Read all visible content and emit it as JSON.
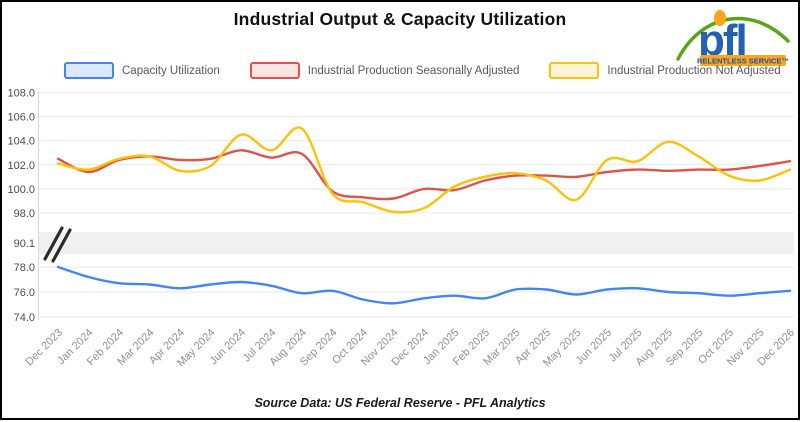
{
  "logo": {
    "text": "pfl",
    "tagline": "RELENTLESS SERVICE™"
  },
  "source_note": "Source Data: US Federal Reserve - PFL Analytics",
  "colors": {
    "background": "#ffffff",
    "frame_border": "#000000",
    "grid": "#e8e8e8",
    "axis_line": "#d8d8d8",
    "break_band": "#f0f0f0",
    "break_mark": "#2b2b2b",
    "y_label": "#4d4d4d",
    "x_label": "#909090",
    "logo_blue": "#2660B0",
    "logo_green": "#58A618",
    "logo_orange": "#F9A61A"
  },
  "chart_data": {
    "type": "line",
    "title": "Industrial Output & Capacity Utilization",
    "grid": true,
    "legend_position": "top",
    "categories": [
      "Dec 2023",
      "Jan 2024",
      "Feb 2024",
      "Mar 2024",
      "Apr 2024",
      "May 2024",
      "Jun 2024",
      "Jul 2024",
      "Aug 2024",
      "Sep 2024",
      "Oct 2024",
      "Nov 2024",
      "Dec 2024",
      "Jan 2025",
      "Feb 2025",
      "Mar 2025",
      "Apr 2025",
      "May 2025",
      "Jun 2025",
      "Jul 2025",
      "Aug 2025",
      "Sep 2025",
      "Oct 2025",
      "Nov 2025",
      "Dec 2026"
    ],
    "series": [
      {
        "name": "Capacity Utilization",
        "color": "#4285F4",
        "swatch_fill": "#dce8fd",
        "values": [
          78.0,
          77.2,
          76.7,
          76.6,
          76.3,
          76.6,
          76.8,
          76.5,
          75.9,
          76.1,
          75.4,
          75.1,
          75.5,
          75.7,
          75.5,
          76.2,
          76.2,
          75.8,
          76.2,
          76.3,
          76.0,
          75.9,
          75.7,
          75.9,
          76.1
        ]
      },
      {
        "name": "Industrial Production Seasonally Adjusted",
        "color": "#E0534A",
        "swatch_fill": "#fbe5e3",
        "values": [
          102.5,
          101.4,
          102.4,
          102.7,
          102.4,
          102.5,
          103.2,
          102.6,
          102.9,
          99.8,
          99.3,
          99.2,
          100.0,
          99.9,
          100.7,
          101.1,
          101.1,
          101.0,
          101.4,
          101.6,
          101.5,
          101.6,
          101.6,
          101.9,
          102.3
        ]
      },
      {
        "name": "Industrial Production Not Adjusted",
        "color": "#FFC107",
        "swatch_fill": "#fdf3d8",
        "values": [
          102.1,
          101.6,
          102.5,
          102.7,
          101.5,
          101.9,
          104.5,
          103.2,
          105.0,
          99.6,
          98.9,
          98.1,
          98.4,
          100.2,
          101.0,
          101.3,
          100.7,
          99.1,
          102.4,
          102.3,
          103.9,
          102.7,
          101.1,
          100.7,
          101.6
        ]
      }
    ],
    "y_axis": {
      "broken": true,
      "upper_ticks": [
        108.0,
        106.0,
        104.0,
        102.0,
        100.0,
        98.0
      ],
      "break_label": "90.1",
      "lower_ticks": [
        78.0,
        76.0,
        74.0
      ]
    }
  }
}
